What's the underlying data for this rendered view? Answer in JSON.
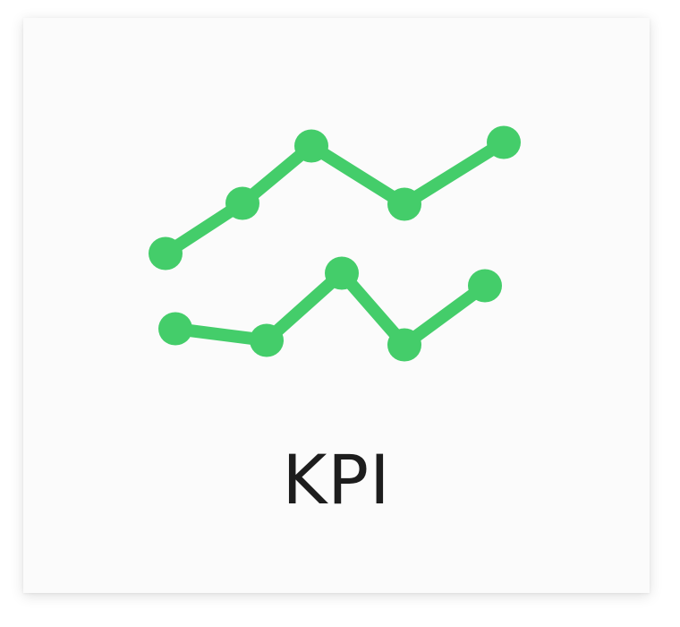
{
  "tile": {
    "label": "KPI",
    "icon_name": "kpi-line-chart-icon",
    "accent_color": "#44cd6a",
    "text_color": "#1d1d1d"
  }
}
